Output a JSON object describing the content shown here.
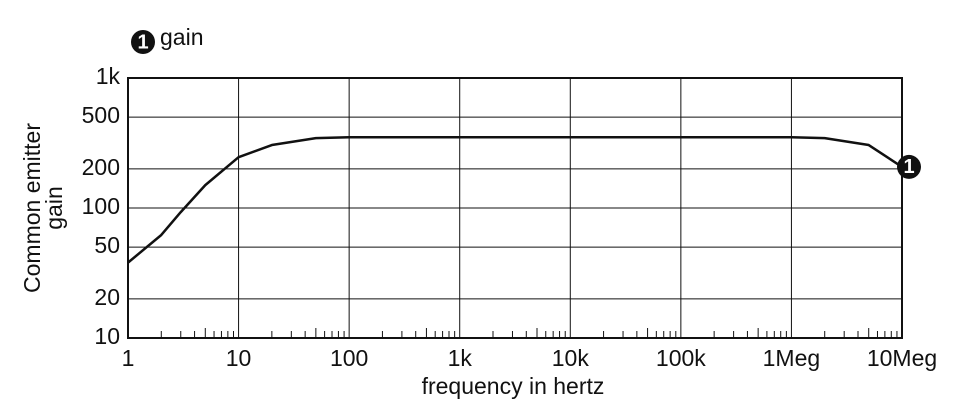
{
  "chart_data": {
    "type": "line",
    "xlabel": "frequency in hertz",
    "ylabel": [
      "Common emitter",
      "gain"
    ],
    "x": [
      1,
      2,
      3,
      5,
      10,
      20,
      50,
      100,
      1000,
      10000,
      100000,
      1000000,
      2000000,
      5000000,
      10000000
    ],
    "series": [
      {
        "name": "gain",
        "marker": "1",
        "color": "#111111",
        "values": [
          38,
          62,
          93,
          150,
          246,
          305,
          345,
          350,
          350,
          350,
          350,
          350,
          345,
          305,
          207
        ]
      }
    ],
    "xlim": [
      1,
      10000000
    ],
    "ylim": [
      10,
      1000
    ],
    "xticks": [
      1,
      10,
      100,
      {
        "value": 1000,
        "label": "1k"
      },
      {
        "value": 10000,
        "label": "10k"
      },
      {
        "value": 100000,
        "label": "100k"
      },
      {
        "value": 1000000,
        "label": "1Meg"
      },
      {
        "value": 10000000,
        "label": "10Meg"
      }
    ],
    "yticks": [
      10,
      20,
      50,
      100,
      200,
      500,
      {
        "value": 1000,
        "label": "1k"
      }
    ],
    "xscale": "log",
    "yscale": "log",
    "grid": true,
    "minor_ticks": true
  }
}
